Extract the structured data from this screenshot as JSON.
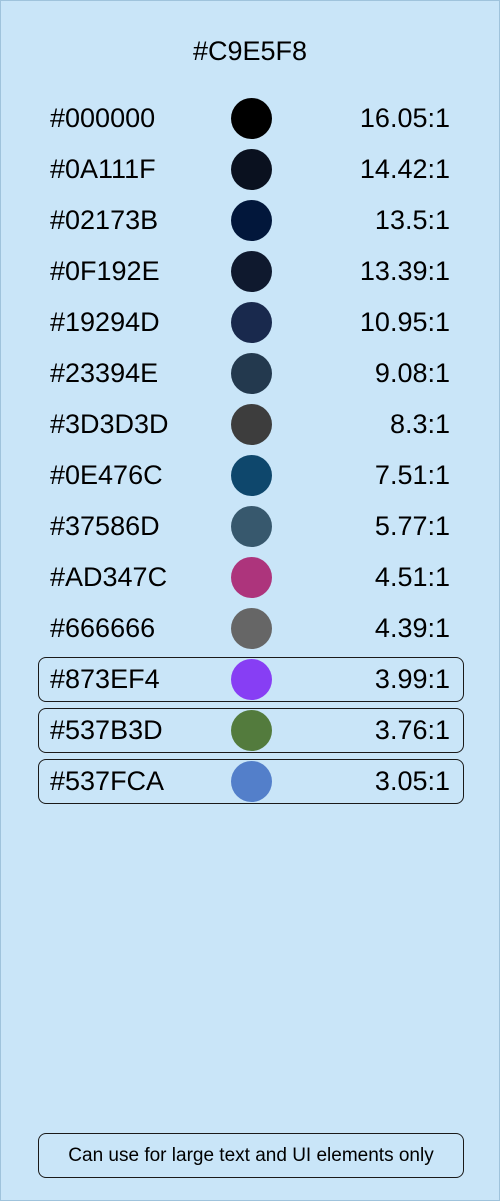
{
  "header": {
    "title": "#C9E5F8"
  },
  "colors": [
    {
      "hex": "#000000",
      "ratio": "16.05:1",
      "flagged": false
    },
    {
      "hex": "#0A111F",
      "ratio": "14.42:1",
      "flagged": false
    },
    {
      "hex": "#02173B",
      "ratio": "13.5:1",
      "flagged": false
    },
    {
      "hex": "#0F192E",
      "ratio": "13.39:1",
      "flagged": false
    },
    {
      "hex": "#19294D",
      "ratio": "10.95:1",
      "flagged": false
    },
    {
      "hex": "#23394E",
      "ratio": "9.08:1",
      "flagged": false
    },
    {
      "hex": "#3D3D3D",
      "ratio": "8.3:1",
      "flagged": false
    },
    {
      "hex": "#0E476C",
      "ratio": "7.51:1",
      "flagged": false
    },
    {
      "hex": "#37586D",
      "ratio": "5.77:1",
      "flagged": false
    },
    {
      "hex": "#AD347C",
      "ratio": "4.51:1",
      "flagged": false
    },
    {
      "hex": "#666666",
      "ratio": "4.39:1",
      "flagged": false
    },
    {
      "hex": "#873EF4",
      "ratio": "3.99:1",
      "flagged": true
    },
    {
      "hex": "#537B3D",
      "ratio": "3.76:1",
      "flagged": true
    },
    {
      "hex": "#537FCA",
      "ratio": "3.05:1",
      "flagged": true
    }
  ],
  "footer": {
    "note": "Can use for large text and UI elements only"
  }
}
